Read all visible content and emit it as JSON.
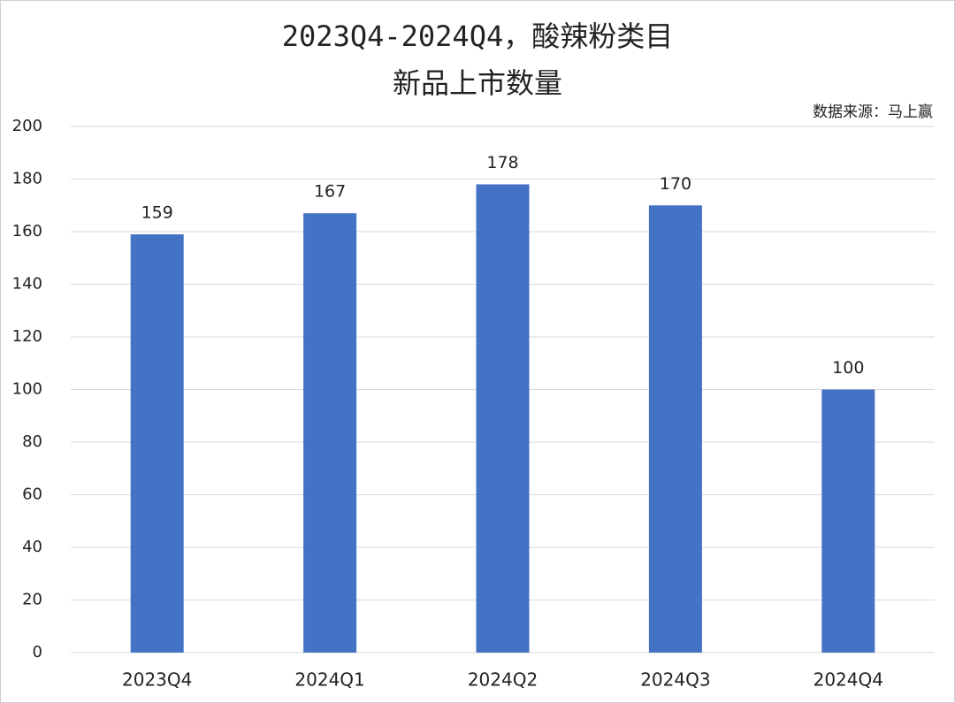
{
  "chart_data": {
    "type": "bar",
    "title": "2023Q4-2024Q4，酸辣粉类目",
    "subtitle": "新品上市数量",
    "source": "数据来源：马上赢",
    "categories": [
      "2023Q4",
      "2024Q1",
      "2024Q2",
      "2024Q3",
      "2024Q4"
    ],
    "values": [
      159,
      167,
      178,
      170,
      100
    ],
    "color": "#4472c4",
    "ylim": [
      0,
      200
    ],
    "yticks": [
      0,
      20,
      40,
      60,
      80,
      100,
      120,
      140,
      160,
      180,
      200
    ],
    "grid": true
  }
}
